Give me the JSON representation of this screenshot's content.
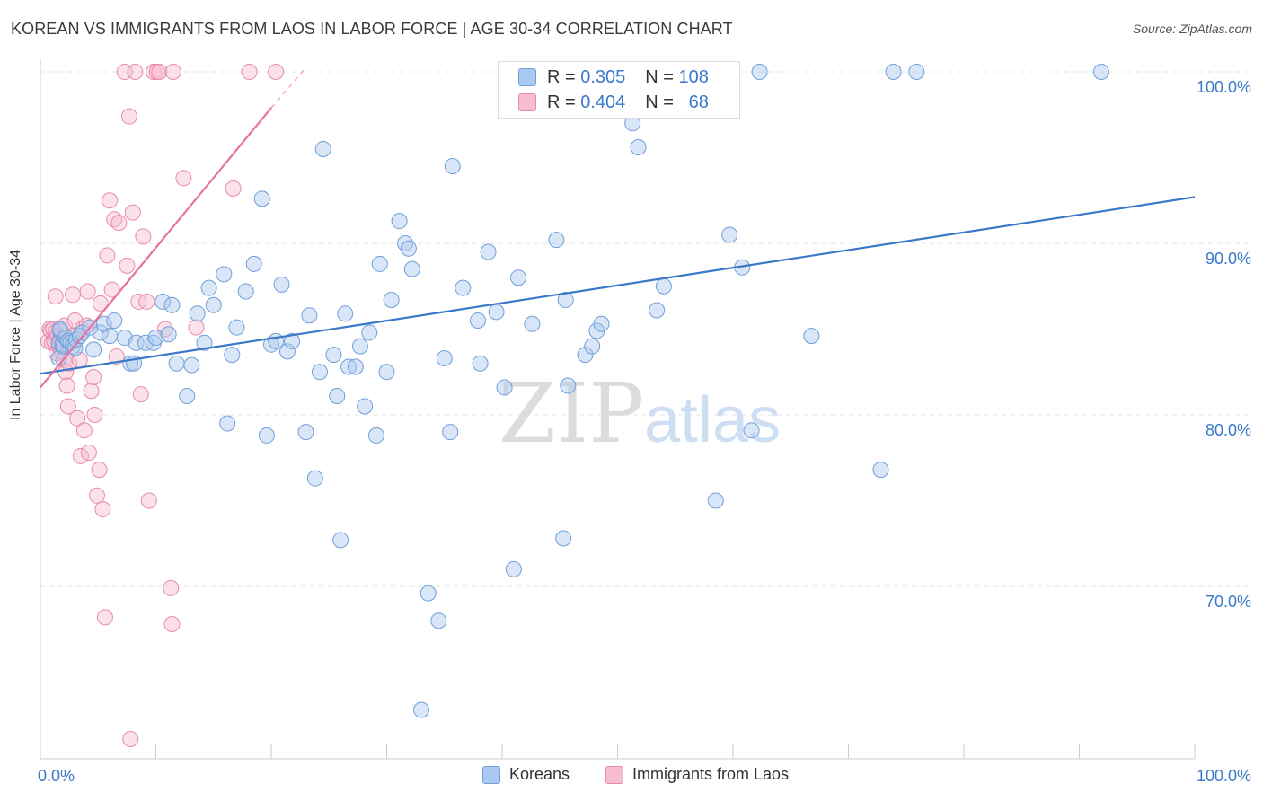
{
  "header": {
    "title": "KOREAN VS IMMIGRANTS FROM LAOS IN LABOR FORCE | AGE 30-34 CORRELATION CHART",
    "source": "Source: ZipAtlas.com"
  },
  "legend": {
    "r_label": "R =",
    "n_label": "N =",
    "rows": [
      {
        "r": "0.305",
        "n": "108",
        "color": "#aac8f0",
        "border": "#6f9fd8"
      },
      {
        "r": "0.404",
        "n": "68",
        "color": "#f6bcd0",
        "border": "#e88aab"
      }
    ]
  },
  "bottom_legend": [
    "Koreans",
    "Immigrants from Laos"
  ],
  "watermark": {
    "zip": "ZIP",
    "atlas": "atlas"
  },
  "colors": {
    "blue": "#3a78c9",
    "blue_fill": "#aac8f0",
    "pink": "#e8729a",
    "pink_fill": "#f6bcd0",
    "grid": "#e4e4e4"
  },
  "chart_data": {
    "type": "scatter",
    "title": "KOREAN VS IMMIGRANTS FROM LAOS IN LABOR FORCE | AGE 30-34 CORRELATION CHART",
    "xlabel": "",
    "ylabel": "In Labor Force | Age 30-34",
    "xlim": [
      0,
      100
    ],
    "ylim": [
      60.5,
      101.5
    ],
    "x_tick_labels": [
      "0.0%",
      "100.0%"
    ],
    "y_ticks": [
      70,
      80,
      90,
      100
    ],
    "y_tick_labels": [
      "70.0%",
      "80.0%",
      "90.0%",
      "100.0%"
    ],
    "grid": "horizontal dashed",
    "series": [
      {
        "name": "Koreans",
        "color": "#3a78c9",
        "trend": {
          "x": [
            0,
            100
          ],
          "y": [
            82.4,
            92.7
          ]
        },
        "points": [
          [
            1.6,
            84.2
          ],
          [
            1.6,
            83.3
          ],
          [
            1.7,
            84.9
          ],
          [
            1.7,
            85.0
          ],
          [
            1.9,
            84.1
          ],
          [
            2.0,
            84.0
          ],
          [
            2.2,
            84.5
          ],
          [
            2.4,
            84.3
          ],
          [
            2.6,
            84.2
          ],
          [
            2.8,
            84.0
          ],
          [
            3.0,
            83.9
          ],
          [
            3.1,
            84.4
          ],
          [
            3.4,
            84.6
          ],
          [
            3.6,
            84.8
          ],
          [
            4.3,
            85.1
          ],
          [
            4.6,
            83.8
          ],
          [
            5.2,
            84.8
          ],
          [
            5.5,
            85.3
          ],
          [
            6.0,
            84.6
          ],
          [
            6.4,
            85.5
          ],
          [
            7.3,
            84.5
          ],
          [
            7.8,
            83.0
          ],
          [
            8.1,
            83.0
          ],
          [
            8.3,
            84.2
          ],
          [
            9.1,
            84.2
          ],
          [
            9.8,
            84.2
          ],
          [
            10.0,
            84.5
          ],
          [
            10.6,
            86.6
          ],
          [
            11.1,
            84.7
          ],
          [
            11.4,
            86.4
          ],
          [
            11.8,
            83.0
          ],
          [
            12.7,
            81.1
          ],
          [
            13.1,
            82.9
          ],
          [
            13.6,
            85.9
          ],
          [
            14.2,
            84.2
          ],
          [
            14.6,
            87.4
          ],
          [
            15.0,
            86.4
          ],
          [
            15.9,
            88.2
          ],
          [
            16.2,
            79.5
          ],
          [
            16.6,
            83.5
          ],
          [
            17.0,
            85.1
          ],
          [
            17.8,
            87.2
          ],
          [
            18.5,
            88.8
          ],
          [
            19.2,
            92.6
          ],
          [
            19.6,
            78.8
          ],
          [
            20.0,
            84.1
          ],
          [
            20.4,
            84.3
          ],
          [
            20.9,
            87.6
          ],
          [
            21.4,
            83.7
          ],
          [
            21.8,
            84.3
          ],
          [
            23.0,
            79.0
          ],
          [
            23.3,
            85.8
          ],
          [
            23.8,
            76.3
          ],
          [
            24.2,
            82.5
          ],
          [
            24.5,
            95.5
          ],
          [
            25.4,
            83.5
          ],
          [
            25.7,
            81.1
          ],
          [
            26.0,
            72.7
          ],
          [
            26.4,
            85.9
          ],
          [
            26.7,
            82.8
          ],
          [
            27.3,
            82.8
          ],
          [
            27.7,
            84.0
          ],
          [
            28.1,
            80.5
          ],
          [
            28.5,
            84.8
          ],
          [
            29.1,
            78.8
          ],
          [
            29.4,
            88.8
          ],
          [
            30.0,
            82.5
          ],
          [
            30.4,
            86.7
          ],
          [
            31.1,
            91.3
          ],
          [
            31.6,
            90.0
          ],
          [
            31.9,
            89.7
          ],
          [
            32.2,
            88.5
          ],
          [
            33.0,
            62.8
          ],
          [
            33.6,
            69.6
          ],
          [
            34.5,
            68.0
          ],
          [
            35.0,
            83.3
          ],
          [
            35.5,
            79.0
          ],
          [
            35.7,
            94.5
          ],
          [
            36.6,
            87.4
          ],
          [
            37.9,
            85.5
          ],
          [
            38.1,
            83.0
          ],
          [
            38.8,
            89.5
          ],
          [
            39.5,
            86.0
          ],
          [
            40.2,
            81.6
          ],
          [
            41.0,
            71.0
          ],
          [
            41.4,
            88.0
          ],
          [
            42.6,
            85.3
          ],
          [
            44.7,
            90.2
          ],
          [
            45.3,
            72.8
          ],
          [
            45.5,
            86.7
          ],
          [
            45.7,
            81.7
          ],
          [
            47.2,
            83.5
          ],
          [
            47.8,
            84.0
          ],
          [
            48.2,
            84.9
          ],
          [
            48.6,
            85.3
          ],
          [
            50.7,
            98.0
          ],
          [
            51.3,
            97.0
          ],
          [
            51.8,
            95.6
          ],
          [
            53.4,
            86.1
          ],
          [
            54.0,
            87.5
          ],
          [
            58.5,
            75.0
          ],
          [
            59.7,
            90.5
          ],
          [
            60.8,
            88.6
          ],
          [
            61.6,
            79.1
          ],
          [
            62.3,
            100.0
          ],
          [
            66.8,
            84.6
          ],
          [
            72.8,
            76.8
          ],
          [
            73.9,
            100.0
          ],
          [
            75.9,
            100.0
          ],
          [
            91.9,
            100.0
          ]
        ]
      },
      {
        "name": "Immigrants from Laos",
        "color": "#e8729a",
        "trend": {
          "x": [
            0,
            20.0
          ],
          "y": [
            81.6,
            97.9
          ]
        },
        "trend_dashed": {
          "x": [
            20.0,
            22.8
          ],
          "y": [
            97.9,
            100.1
          ]
        },
        "points": [
          [
            0.7,
            84.3
          ],
          [
            0.8,
            85.0
          ],
          [
            0.9,
            84.9
          ],
          [
            1.0,
            84.2
          ],
          [
            1.1,
            85.0
          ],
          [
            1.2,
            84.3
          ],
          [
            1.3,
            84.8
          ],
          [
            1.4,
            83.6
          ],
          [
            1.5,
            84.6
          ],
          [
            1.6,
            84.0
          ],
          [
            1.7,
            84.4
          ],
          [
            1.8,
            83.7
          ],
          [
            1.9,
            84.1
          ],
          [
            2.0,
            83.2
          ],
          [
            2.1,
            85.2
          ],
          [
            2.2,
            82.5
          ],
          [
            2.3,
            81.7
          ],
          [
            2.4,
            80.5
          ],
          [
            2.5,
            83.0
          ],
          [
            2.7,
            84.6
          ],
          [
            2.8,
            87.0
          ],
          [
            3.0,
            85.5
          ],
          [
            3.2,
            79.8
          ],
          [
            3.4,
            83.2
          ],
          [
            3.5,
            77.6
          ],
          [
            3.6,
            85.0
          ],
          [
            3.8,
            79.1
          ],
          [
            4.0,
            85.2
          ],
          [
            4.2,
            77.8
          ],
          [
            4.4,
            81.4
          ],
          [
            4.6,
            82.2
          ],
          [
            4.7,
            80.0
          ],
          [
            4.9,
            75.3
          ],
          [
            5.1,
            76.8
          ],
          [
            5.2,
            86.5
          ],
          [
            5.4,
            74.5
          ],
          [
            5.6,
            68.2
          ],
          [
            5.8,
            89.3
          ],
          [
            6.0,
            92.5
          ],
          [
            6.2,
            87.3
          ],
          [
            6.4,
            91.4
          ],
          [
            6.6,
            83.4
          ],
          [
            6.8,
            91.2
          ],
          [
            7.3,
            100.0
          ],
          [
            7.5,
            88.7
          ],
          [
            7.7,
            97.4
          ],
          [
            7.8,
            61.1
          ],
          [
            8.0,
            91.8
          ],
          [
            8.2,
            100.0
          ],
          [
            8.5,
            86.6
          ],
          [
            8.7,
            81.2
          ],
          [
            8.9,
            90.4
          ],
          [
            9.2,
            86.6
          ],
          [
            9.4,
            75.0
          ],
          [
            9.8,
            100.0
          ],
          [
            10.1,
            100.0
          ],
          [
            10.3,
            100.0
          ],
          [
            10.8,
            85.0
          ],
          [
            11.3,
            69.9
          ],
          [
            11.4,
            67.8
          ],
          [
            11.5,
            100.0
          ],
          [
            12.4,
            93.8
          ],
          [
            13.5,
            85.1
          ],
          [
            16.7,
            93.2
          ],
          [
            18.1,
            100.0
          ],
          [
            20.4,
            100.0
          ],
          [
            1.3,
            86.9
          ],
          [
            4.1,
            87.2
          ]
        ]
      }
    ]
  }
}
